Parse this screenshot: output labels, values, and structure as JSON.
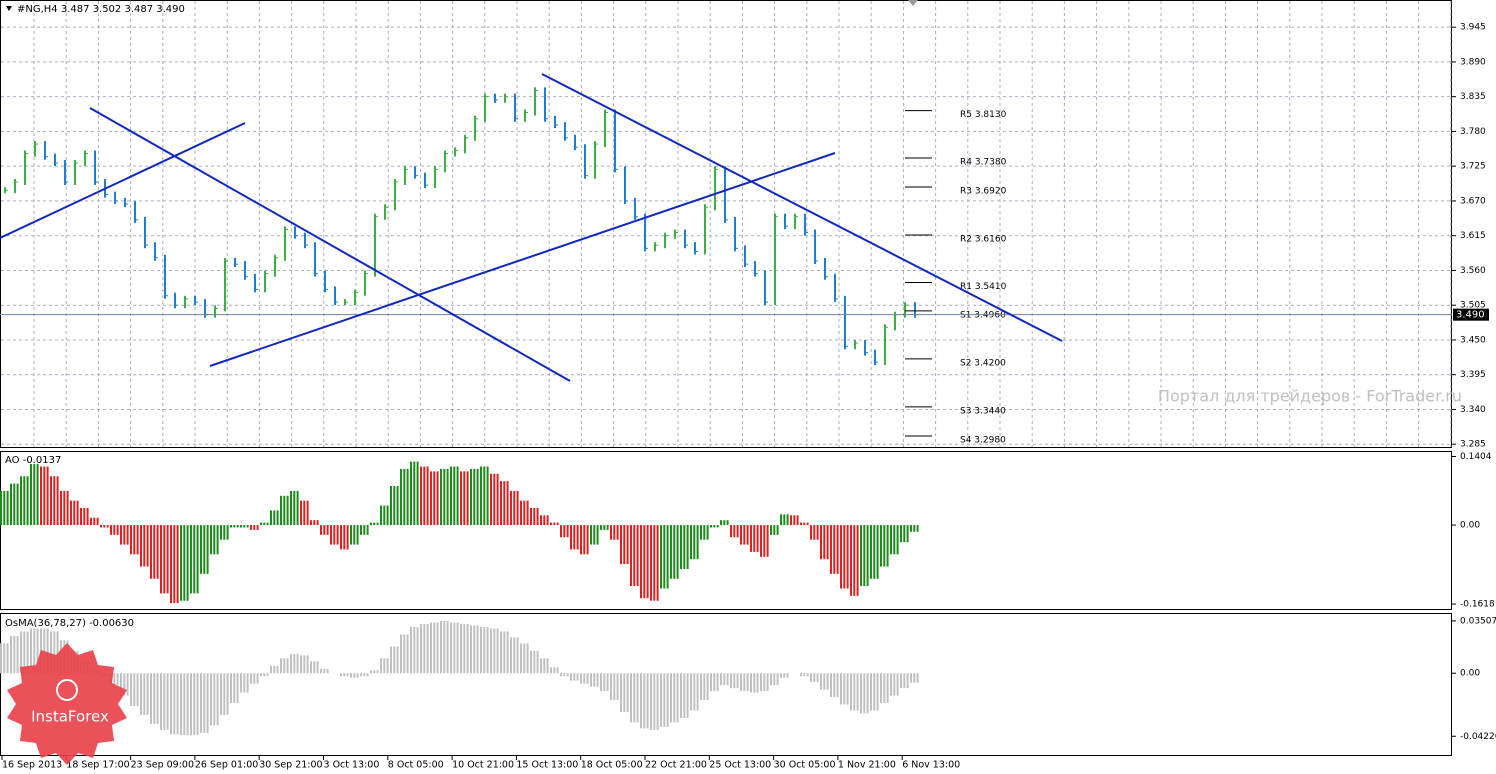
{
  "header": "#NG,H4  3.487 3.502 3.487 3.490",
  "watermark": "Портал для трейдеров - ForTrader.ru",
  "logo": "InstaForex",
  "x_labels": [
    "16 Sep 2013",
    "18 Sep 17:00",
    "23 Sep 09:00",
    "26 Sep 01:00",
    "30 Sep 21:00",
    "3 Oct 13:00",
    "8 Oct 05:00",
    "10 Oct 21:00",
    "15 Oct 13:00",
    "18 Oct 05:00",
    "22 Oct 21:00",
    "25 Oct 13:00",
    "30 Oct 05:00",
    "1 Nov 21:00",
    "6 Nov 13:00"
  ],
  "chart_data": [
    {
      "type": "bar",
      "name": "price",
      "up_color": "#3cb043",
      "down_color": "#1e7fd0",
      "ylim": [
        3.279,
        3.988
      ],
      "yticks": [
        3.945,
        {
          "value": 3.89,
          "label": "3.890"
        },
        3.835,
        {
          "value": 3.78,
          "label": "3.780"
        },
        3.725,
        {
          "value": 3.67,
          "label": "3.670"
        },
        3.615,
        {
          "value": 3.56,
          "label": "3.560"
        },
        3.505,
        {
          "value": 3.45,
          "label": "3.450"
        },
        3.395,
        {
          "value": 3.34,
          "label": "3.340"
        },
        3.285
      ],
      "grid": true,
      "current_price": {
        "value": 3.49,
        "label": "3.490"
      },
      "values": [
        3.687,
        3.7,
        3.745,
        3.76,
        3.74,
        3.73,
        3.7,
        3.73,
        3.745,
        3.7,
        3.68,
        3.67,
        3.665,
        3.64,
        3.6,
        3.58,
        3.52,
        3.505,
        3.515,
        3.51,
        3.49,
        3.5,
        3.575,
        3.57,
        3.55,
        3.53,
        3.555,
        3.58,
        3.625,
        3.615,
        3.6,
        3.555,
        3.53,
        3.51,
        3.51,
        3.525,
        3.555,
        3.645,
        3.66,
        3.7,
        3.72,
        3.71,
        3.695,
        3.72,
        3.745,
        3.75,
        3.77,
        3.8,
        3.835,
        3.83,
        3.835,
        3.8,
        3.81,
        3.845,
        3.8,
        3.79,
        3.77,
        3.755,
        3.71,
        3.76,
        3.81,
        3.72,
        3.67,
        3.645,
        3.595,
        3.6,
        3.615,
        3.62,
        3.6,
        3.59,
        3.66,
        3.72,
        3.64,
        3.595,
        3.57,
        3.555,
        3.51,
        3.645,
        3.63,
        3.645,
        3.62,
        3.575,
        3.55,
        3.515,
        3.44,
        3.445,
        3.43,
        3.415,
        3.47,
        3.49,
        3.505,
        3.49
      ],
      "pivots": [
        {
          "label": "R5 3.8130",
          "value": 3.813
        },
        {
          "label": "R4 3.7380",
          "value": 3.738
        },
        {
          "label": "R3 3.6920",
          "value": 3.692
        },
        {
          "label": "R2 3.6160",
          "value": 3.616
        },
        {
          "label": "R1 3.5410",
          "value": 3.541
        },
        {
          "label": "S1 3.4960",
          "value": 3.496
        },
        {
          "label": "S2 3.4200",
          "value": 3.42
        },
        {
          "label": "S3 3.3440",
          "value": 3.344
        },
        {
          "label": "S4 3.2980",
          "value": 3.298
        }
      ]
    },
    {
      "type": "histogram",
      "name": "ao",
      "title": "AO -0.0137",
      "up_color": "#1a8c1a",
      "down_color": "#e02020",
      "ylim": [
        -0.174,
        0.1497
      ],
      "yticks": [
        0.1404,
        {
          "value": 0,
          "label": "0.00"
        },
        -0.1618
      ],
      "values": [
        0.07,
        0.085,
        0.1,
        0.125,
        0.12,
        0.1,
        0.07,
        0.05,
        0.035,
        0.015,
        -0.005,
        -0.02,
        -0.04,
        -0.06,
        -0.085,
        -0.11,
        -0.14,
        -0.16,
        -0.155,
        -0.14,
        -0.1,
        -0.06,
        -0.03,
        -0.005,
        -0.005,
        -0.01,
        0.005,
        0.03,
        0.06,
        0.07,
        0.05,
        0.01,
        -0.02,
        -0.04,
        -0.05,
        -0.04,
        -0.02,
        0.005,
        0.04,
        0.08,
        0.115,
        0.13,
        0.12,
        0.11,
        0.115,
        0.12,
        0.11,
        0.115,
        0.12,
        0.105,
        0.09,
        0.07,
        0.05,
        0.035,
        0.02,
        0.005,
        -0.025,
        -0.05,
        -0.06,
        -0.04,
        -0.01,
        -0.03,
        -0.08,
        -0.125,
        -0.15,
        -0.155,
        -0.13,
        -0.11,
        -0.09,
        -0.07,
        -0.03,
        -0.005,
        0.01,
        -0.025,
        -0.04,
        -0.055,
        -0.065,
        -0.02,
        0.022,
        0.02,
        0.005,
        -0.03,
        -0.07,
        -0.1,
        -0.13,
        -0.145,
        -0.125,
        -0.11,
        -0.085,
        -0.06,
        -0.035,
        -0.0137
      ]
    },
    {
      "type": "histogram",
      "name": "osma",
      "title": "OsMA(36,78,27) -0.00630",
      "color": "#c0c0c0",
      "ylim": [
        -0.0555,
        0.0397
      ],
      "yticks": [
        0.03507,
        {
          "value": 0,
          "label": "0.00"
        },
        -0.04226
      ],
      "values": [
        0.02,
        0.025,
        0.028,
        0.03,
        0.03,
        0.028,
        0.022,
        0.015,
        0.008,
        0.003,
        -0.002,
        -0.008,
        -0.015,
        -0.022,
        -0.028,
        -0.034,
        -0.038,
        -0.041,
        -0.0415,
        -0.0415,
        -0.04,
        -0.035,
        -0.028,
        -0.02,
        -0.013,
        -0.007,
        -0.002,
        0.005,
        0.01,
        0.013,
        0.012,
        0.008,
        0.003,
        0.0,
        -0.002,
        -0.003,
        -0.002,
        0.002,
        0.01,
        0.018,
        0.026,
        0.031,
        0.033,
        0.034,
        0.035,
        0.034,
        0.033,
        0.032,
        0.031,
        0.03,
        0.028,
        0.024,
        0.02,
        0.015,
        0.01,
        0.004,
        -0.002,
        -0.005,
        -0.007,
        -0.009,
        -0.012,
        -0.018,
        -0.026,
        -0.033,
        -0.037,
        -0.038,
        -0.036,
        -0.033,
        -0.03,
        -0.025,
        -0.018,
        -0.012,
        -0.008,
        -0.01,
        -0.012,
        -0.013,
        -0.012,
        -0.008,
        -0.003,
        0.0,
        -0.002,
        -0.006,
        -0.011,
        -0.016,
        -0.021,
        -0.025,
        -0.027,
        -0.025,
        -0.02,
        -0.015,
        -0.01,
        -0.0063
      ]
    }
  ]
}
